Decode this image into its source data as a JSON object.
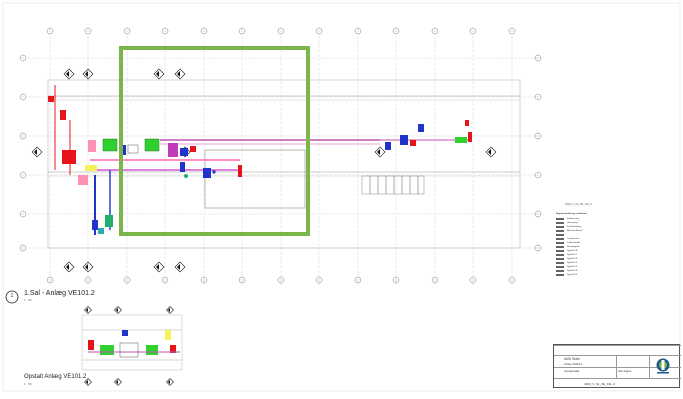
{
  "sheet": {
    "view1_number": "1",
    "view1_title": "1.Sal - Anlæg VE101.2",
    "view1_scale": "1 : 50",
    "view2_title": "Opstalt Anlæg VE101.2",
    "view2_scale": "1 : 50",
    "highlight_color": "#7ab648"
  },
  "legend": {
    "title": "Signaturforklaring ventilation",
    "items": [
      {
        "label": "Indblæsning",
        "color": "#f2c6e0"
      },
      {
        "label": "Udsugning",
        "color": "#e6c8f0"
      },
      {
        "label": "Friskluftsluftag",
        "color": "#f7d3e8"
      },
      {
        "label": "Afkastsluftkanal",
        "color": "#f0c6f0"
      },
      {
        "label": "",
        "color": "#ffffff"
      },
      {
        "label": "Comfortvent",
        "color": "#f5f25c"
      },
      {
        "label": "Luftbehandler",
        "color": "#2fd12f"
      },
      {
        "label": "Brandspjæld",
        "color": "#e8141b"
      },
      {
        "label": "Spjæld VE",
        "color": "#ff8fb3"
      },
      {
        "label": "Spjæld VT",
        "color": "#2ba9b5"
      },
      {
        "label": "Spjæld VG",
        "color": "#1fb06b"
      },
      {
        "label": "Spjæld VF",
        "color": "#2233cc"
      },
      {
        "label": "Spjæld VP",
        "color": "#a01fa8"
      },
      {
        "label": "Spjæld VH",
        "color": "#7b3df0"
      },
      {
        "label": "Spjæld VX",
        "color": "#c33ab8"
      }
    ]
  },
  "titleblock": {
    "project": "AMU Skive",
    "drawing": "Anlæg VE101.2",
    "phase": "Hovedprojekt",
    "scale": "Som angivet",
    "number": "4203_V_01_VE_101_2"
  },
  "right_label": "4203_V_01_VE_101_2",
  "icons": {
    "logo": "logo-icon",
    "section_marker": "section-marker-icon",
    "grid_bubble": "grid-bubble-icon"
  }
}
